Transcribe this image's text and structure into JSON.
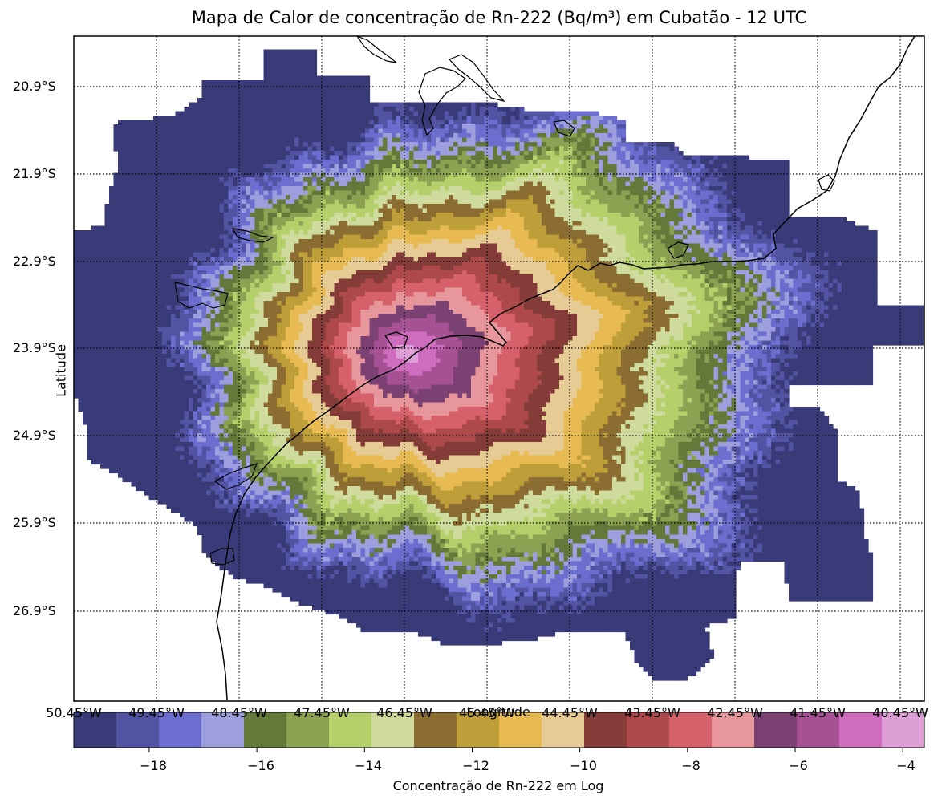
{
  "title": "Mapa de Calor de concentração de Rn-222 (Bq/m³) em Cubatão - 12 UTC",
  "axes": {
    "ylabel": "Latitude",
    "xlabel": "Longitude",
    "lat_ticks": [
      "20.9°S",
      "21.9°S",
      "22.9°S",
      "23.9°S",
      "24.9°S",
      "25.9°S",
      "26.9°S"
    ],
    "lon_ticks": [
      "50.45°W",
      "49.45°W",
      "48.45°W",
      "47.45°W",
      "46.45°W",
      "45.45°W",
      "44.45°W",
      "43.45°W",
      "42.45°W",
      "41.45°W",
      "40.45°W"
    ]
  },
  "colorbar": {
    "label": "Concentração de Rn-222 em Log",
    "ticks": [
      "−18",
      "−16",
      "−14",
      "−12",
      "−10",
      "−8",
      "−6",
      "−4"
    ],
    "tick_values": [
      -18,
      -16,
      -14,
      -12,
      -10,
      -8,
      -6,
      -4
    ],
    "range": [
      -19.4,
      -3.6
    ],
    "colors": [
      "#393b79",
      "#5254a3",
      "#6b6ecf",
      "#9c9ede",
      "#637939",
      "#8ca252",
      "#b5cf6b",
      "#cedb9c",
      "#8c6d31",
      "#bd9e39",
      "#e7ba52",
      "#e7cb94",
      "#843c39",
      "#ad494a",
      "#d6616b",
      "#e7969c",
      "#7b4173",
      "#a55194",
      "#ce6dbd",
      "#de9ed6"
    ]
  },
  "map": {
    "source_label": "Cubatão",
    "source_longitude": -46.45,
    "source_latitude": -23.95,
    "extent": {
      "lon_min": -50.45,
      "lon_max": -40.15,
      "lat_min": -27.9,
      "lat_max": -20.35
    },
    "gridlines": "dotted",
    "coastline": true
  }
}
